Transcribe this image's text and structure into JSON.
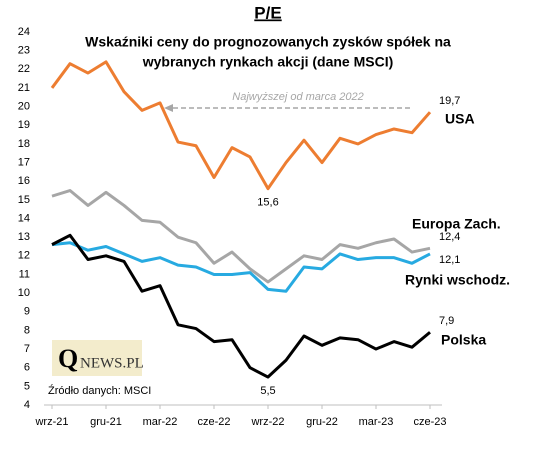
{
  "chart_data": {
    "type": "line",
    "title": "P/E",
    "subtitle": [
      "Wskaźniki ceny do prognozowanych  zysków spółek na",
      "wybranych rynkach akcji (dane MSCI)"
    ],
    "annotation": "Najwyższej od marca 2022",
    "source": "Źródło danych: MSCI",
    "logo": {
      "initial": "Q",
      "rest": "NEWS.PL"
    },
    "categories": [
      "wrz-21",
      null,
      null,
      "gru-21",
      null,
      null,
      "mar-22",
      null,
      null,
      "cze-22",
      null,
      null,
      "wrz-22",
      null,
      null,
      "gru-22",
      null,
      null,
      "mar-23",
      null,
      null,
      "cze-23"
    ],
    "ylim": [
      4,
      24
    ],
    "yticks": [
      4,
      5,
      6,
      7,
      8,
      9,
      10,
      11,
      12,
      13,
      14,
      15,
      16,
      17,
      18,
      19,
      20,
      21,
      22,
      23,
      24
    ],
    "series": [
      {
        "name": "USA",
        "color": "#ed7d31",
        "values": [
          21.0,
          22.3,
          21.8,
          22.4,
          20.8,
          19.8,
          20.2,
          18.1,
          17.9,
          16.2,
          17.8,
          17.3,
          15.6,
          17.0,
          18.2,
          17.0,
          18.3,
          18.0,
          18.5,
          18.8,
          18.6,
          19.7
        ],
        "value_labels": [
          null,
          null,
          null,
          null,
          null,
          null,
          null,
          null,
          null,
          null,
          null,
          null,
          "15,6",
          null,
          null,
          null,
          null,
          null,
          null,
          null,
          null,
          "19,7"
        ]
      },
      {
        "name": "Europa Zach.",
        "color": "#a6a6a6",
        "values": [
          15.2,
          15.5,
          14.7,
          15.4,
          14.7,
          13.9,
          13.8,
          13.0,
          12.7,
          11.6,
          12.2,
          11.3,
          10.6,
          11.3,
          12.0,
          11.8,
          12.6,
          12.4,
          12.7,
          12.9,
          12.2,
          12.4
        ],
        "value_labels": [
          null,
          null,
          null,
          null,
          null,
          null,
          null,
          null,
          null,
          null,
          null,
          null,
          null,
          null,
          null,
          null,
          null,
          null,
          null,
          null,
          null,
          "12,4"
        ]
      },
      {
        "name": "Rynki wschodz.",
        "color": "#27aae1",
        "values": [
          12.6,
          12.7,
          12.3,
          12.5,
          12.1,
          11.7,
          11.9,
          11.5,
          11.4,
          11.0,
          11.0,
          11.1,
          10.2,
          10.1,
          11.4,
          11.3,
          12.1,
          11.8,
          11.9,
          11.9,
          11.6,
          12.1
        ],
        "value_labels": [
          null,
          null,
          null,
          null,
          null,
          null,
          null,
          null,
          null,
          null,
          null,
          null,
          null,
          null,
          null,
          null,
          null,
          null,
          null,
          null,
          null,
          "12,1"
        ]
      },
      {
        "name": "Polska",
        "color": "#000000",
        "values": [
          12.6,
          13.1,
          11.8,
          12.0,
          11.7,
          10.1,
          10.4,
          8.3,
          8.1,
          7.4,
          7.5,
          6.0,
          5.5,
          6.4,
          7.7,
          7.2,
          7.6,
          7.5,
          7.0,
          7.4,
          7.1,
          7.9
        ],
        "value_labels": [
          null,
          null,
          null,
          null,
          null,
          null,
          null,
          null,
          null,
          null,
          null,
          null,
          "5,5",
          null,
          null,
          null,
          null,
          null,
          null,
          null,
          null,
          "7,9"
        ]
      }
    ]
  }
}
